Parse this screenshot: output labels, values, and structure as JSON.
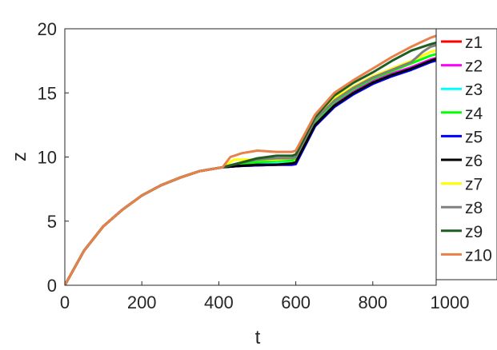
{
  "chart_data": {
    "type": "line",
    "title": "",
    "xlabel": "t",
    "ylabel": "z",
    "xlim": [
      0,
      1000
    ],
    "ylim": [
      0,
      20
    ],
    "xticks": [
      "0",
      "200",
      "400",
      "600",
      "800",
      "1000"
    ],
    "yticks": [
      "0",
      "5",
      "10",
      "15",
      "20"
    ],
    "grid": false,
    "legend_position": "right",
    "series": [
      {
        "name": "z1",
        "color": "#ff0000",
        "points": [
          [
            0,
            0
          ],
          [
            50,
            2.7
          ],
          [
            100,
            4.6
          ],
          [
            150,
            5.9
          ],
          [
            200,
            7.0
          ],
          [
            250,
            7.8
          ],
          [
            300,
            8.4
          ],
          [
            350,
            8.9
          ],
          [
            410,
            9.2
          ],
          [
            450,
            9.3
          ],
          [
            500,
            9.35
          ],
          [
            550,
            9.4
          ],
          [
            590,
            9.4
          ],
          [
            600,
            9.45
          ],
          [
            650,
            12.6
          ],
          [
            700,
            14.1
          ],
          [
            750,
            15.1
          ],
          [
            800,
            15.9
          ],
          [
            850,
            16.5
          ],
          [
            900,
            17.0
          ],
          [
            950,
            17.6
          ],
          [
            1000,
            18.0
          ]
        ]
      },
      {
        "name": "z2",
        "color": "#ff00ff",
        "points": [
          [
            0,
            0
          ],
          [
            50,
            2.7
          ],
          [
            100,
            4.6
          ],
          [
            150,
            5.9
          ],
          [
            200,
            7.0
          ],
          [
            250,
            7.8
          ],
          [
            300,
            8.4
          ],
          [
            350,
            8.9
          ],
          [
            410,
            9.2
          ],
          [
            450,
            9.3
          ],
          [
            500,
            9.35
          ],
          [
            550,
            9.4
          ],
          [
            590,
            9.4
          ],
          [
            600,
            9.45
          ],
          [
            650,
            12.6
          ],
          [
            700,
            14.1
          ],
          [
            750,
            15.1
          ],
          [
            800,
            15.9
          ],
          [
            850,
            16.5
          ],
          [
            900,
            17.0
          ],
          [
            950,
            17.6
          ],
          [
            1000,
            18.0
          ]
        ]
      },
      {
        "name": "z3",
        "color": "#00ffff",
        "points": [
          [
            0,
            0
          ],
          [
            50,
            2.7
          ],
          [
            100,
            4.6
          ],
          [
            150,
            5.9
          ],
          [
            200,
            7.0
          ],
          [
            250,
            7.8
          ],
          [
            300,
            8.4
          ],
          [
            350,
            8.9
          ],
          [
            410,
            9.2
          ],
          [
            450,
            9.35
          ],
          [
            500,
            9.45
          ],
          [
            550,
            9.5
          ],
          [
            590,
            9.5
          ],
          [
            600,
            9.5
          ],
          [
            650,
            12.5
          ],
          [
            700,
            14.0
          ],
          [
            750,
            15.0
          ],
          [
            800,
            15.8
          ],
          [
            850,
            16.4
          ],
          [
            900,
            16.9
          ],
          [
            950,
            17.5
          ],
          [
            1000,
            17.9
          ]
        ]
      },
      {
        "name": "z4",
        "color": "#00ff00",
        "points": [
          [
            0,
            0
          ],
          [
            50,
            2.7
          ],
          [
            100,
            4.6
          ],
          [
            150,
            5.9
          ],
          [
            200,
            7.0
          ],
          [
            250,
            7.8
          ],
          [
            300,
            8.4
          ],
          [
            350,
            8.9
          ],
          [
            410,
            9.2
          ],
          [
            450,
            9.4
          ],
          [
            500,
            9.6
          ],
          [
            550,
            9.7
          ],
          [
            590,
            9.7
          ],
          [
            600,
            9.9
          ],
          [
            650,
            12.8
          ],
          [
            700,
            14.3
          ],
          [
            750,
            15.3
          ],
          [
            800,
            16.1
          ],
          [
            850,
            16.7
          ],
          [
            900,
            17.3
          ],
          [
            950,
            17.9
          ],
          [
            1000,
            18.3
          ]
        ]
      },
      {
        "name": "z5",
        "color": "#0000ff",
        "points": [
          [
            0,
            0
          ],
          [
            50,
            2.7
          ],
          [
            100,
            4.6
          ],
          [
            150,
            5.9
          ],
          [
            200,
            7.0
          ],
          [
            250,
            7.8
          ],
          [
            300,
            8.4
          ],
          [
            350,
            8.9
          ],
          [
            410,
            9.2
          ],
          [
            450,
            9.3
          ],
          [
            500,
            9.35
          ],
          [
            550,
            9.4
          ],
          [
            590,
            9.4
          ],
          [
            600,
            9.45
          ],
          [
            650,
            12.4
          ],
          [
            700,
            13.9
          ],
          [
            750,
            14.9
          ],
          [
            800,
            15.7
          ],
          [
            850,
            16.3
          ],
          [
            900,
            16.8
          ],
          [
            950,
            17.4
          ],
          [
            1000,
            17.8
          ]
        ]
      },
      {
        "name": "z6",
        "color": "#000000",
        "points": [
          [
            0,
            0
          ],
          [
            50,
            2.7
          ],
          [
            100,
            4.6
          ],
          [
            150,
            5.9
          ],
          [
            200,
            7.0
          ],
          [
            250,
            7.8
          ],
          [
            300,
            8.4
          ],
          [
            350,
            8.9
          ],
          [
            410,
            9.2
          ],
          [
            450,
            9.3
          ],
          [
            500,
            9.4
          ],
          [
            550,
            9.4
          ],
          [
            590,
            9.5
          ],
          [
            600,
            9.6
          ],
          [
            650,
            12.5
          ],
          [
            700,
            14.0
          ],
          [
            750,
            15.0
          ],
          [
            800,
            15.8
          ],
          [
            850,
            16.4
          ],
          [
            900,
            16.9
          ],
          [
            950,
            17.5
          ],
          [
            1000,
            18.0
          ]
        ]
      },
      {
        "name": "z7",
        "color": "#ffff00",
        "points": [
          [
            0,
            0
          ],
          [
            50,
            2.7
          ],
          [
            100,
            4.6
          ],
          [
            150,
            5.9
          ],
          [
            200,
            7.0
          ],
          [
            250,
            7.8
          ],
          [
            300,
            8.4
          ],
          [
            350,
            8.9
          ],
          [
            410,
            9.2
          ],
          [
            440,
            9.8
          ],
          [
            500,
            9.8
          ],
          [
            550,
            9.8
          ],
          [
            590,
            9.9
          ],
          [
            600,
            10.0
          ],
          [
            650,
            13.0
          ],
          [
            700,
            14.6
          ],
          [
            750,
            15.5
          ],
          [
            800,
            16.3
          ],
          [
            850,
            16.9
          ],
          [
            900,
            17.5
          ],
          [
            950,
            18.2
          ],
          [
            1000,
            18.6
          ]
        ]
      },
      {
        "name": "z8",
        "color": "#808080",
        "points": [
          [
            0,
            0
          ],
          [
            50,
            2.7
          ],
          [
            100,
            4.6
          ],
          [
            150,
            5.9
          ],
          [
            200,
            7.0
          ],
          [
            250,
            7.8
          ],
          [
            300,
            8.4
          ],
          [
            350,
            8.9
          ],
          [
            410,
            9.2
          ],
          [
            450,
            9.5
          ],
          [
            500,
            9.8
          ],
          [
            550,
            9.9
          ],
          [
            590,
            9.9
          ],
          [
            600,
            10.0
          ],
          [
            650,
            12.9
          ],
          [
            700,
            14.4
          ],
          [
            750,
            15.4
          ],
          [
            800,
            16.2
          ],
          [
            850,
            16.8
          ],
          [
            900,
            17.4
          ],
          [
            930,
            18.2
          ],
          [
            950,
            18.6
          ],
          [
            1000,
            19.0
          ]
        ]
      },
      {
        "name": "z9",
        "color": "#1f5c1f",
        "points": [
          [
            0,
            0
          ],
          [
            50,
            2.7
          ],
          [
            100,
            4.6
          ],
          [
            150,
            5.9
          ],
          [
            200,
            7.0
          ],
          [
            250,
            7.8
          ],
          [
            300,
            8.4
          ],
          [
            350,
            8.9
          ],
          [
            410,
            9.2
          ],
          [
            450,
            9.5
          ],
          [
            500,
            9.9
          ],
          [
            550,
            10.1
          ],
          [
            590,
            10.1
          ],
          [
            600,
            10.2
          ],
          [
            650,
            13.1
          ],
          [
            700,
            14.8
          ],
          [
            750,
            15.8
          ],
          [
            800,
            16.6
          ],
          [
            850,
            17.5
          ],
          [
            900,
            18.3
          ],
          [
            950,
            18.8
          ],
          [
            1000,
            19.2
          ]
        ]
      },
      {
        "name": "z10",
        "color": "#e8804a",
        "points": [
          [
            0,
            0
          ],
          [
            50,
            2.7
          ],
          [
            100,
            4.6
          ],
          [
            150,
            5.9
          ],
          [
            200,
            7.0
          ],
          [
            250,
            7.8
          ],
          [
            300,
            8.4
          ],
          [
            350,
            8.9
          ],
          [
            410,
            9.2
          ],
          [
            430,
            10.0
          ],
          [
            460,
            10.3
          ],
          [
            500,
            10.5
          ],
          [
            550,
            10.4
          ],
          [
            590,
            10.4
          ],
          [
            600,
            10.5
          ],
          [
            650,
            13.3
          ],
          [
            700,
            15.0
          ],
          [
            750,
            16.0
          ],
          [
            800,
            16.9
          ],
          [
            850,
            17.8
          ],
          [
            900,
            18.6
          ],
          [
            950,
            19.3
          ],
          [
            1000,
            19.8
          ]
        ]
      }
    ]
  }
}
